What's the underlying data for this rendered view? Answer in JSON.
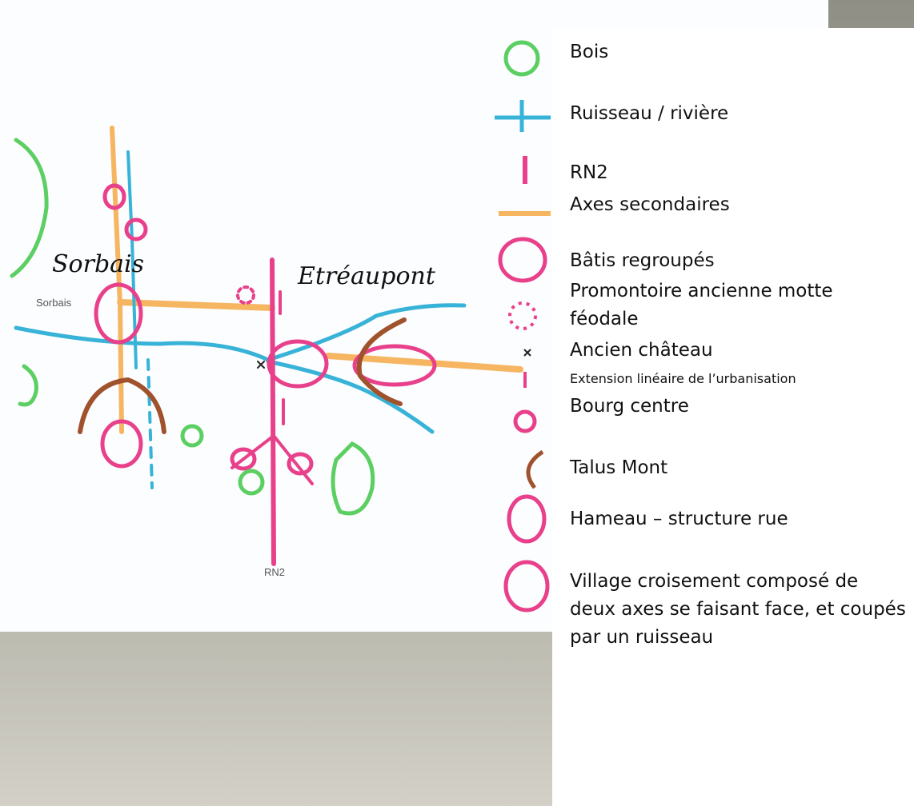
{
  "map": {
    "place_labels": [
      "Sorbais",
      "Etréaupont"
    ],
    "handwritten_labels": [
      "Sorbais",
      "RN2"
    ]
  },
  "legend": {
    "items": [
      "Bois",
      "Ruisseau / rivière",
      "RN2",
      "Axes secondaires",
      "Bâtis regroupés",
      "Promontoire ancienne motte féodale",
      "Ancien château",
      "Extension linéaire de l’urbanisation",
      "Bourg centre",
      "Talus Mont",
      "Hameau – structure rue",
      "Village croisement composé de deux axes se faisant face, et coupés par un ruisseau"
    ]
  }
}
